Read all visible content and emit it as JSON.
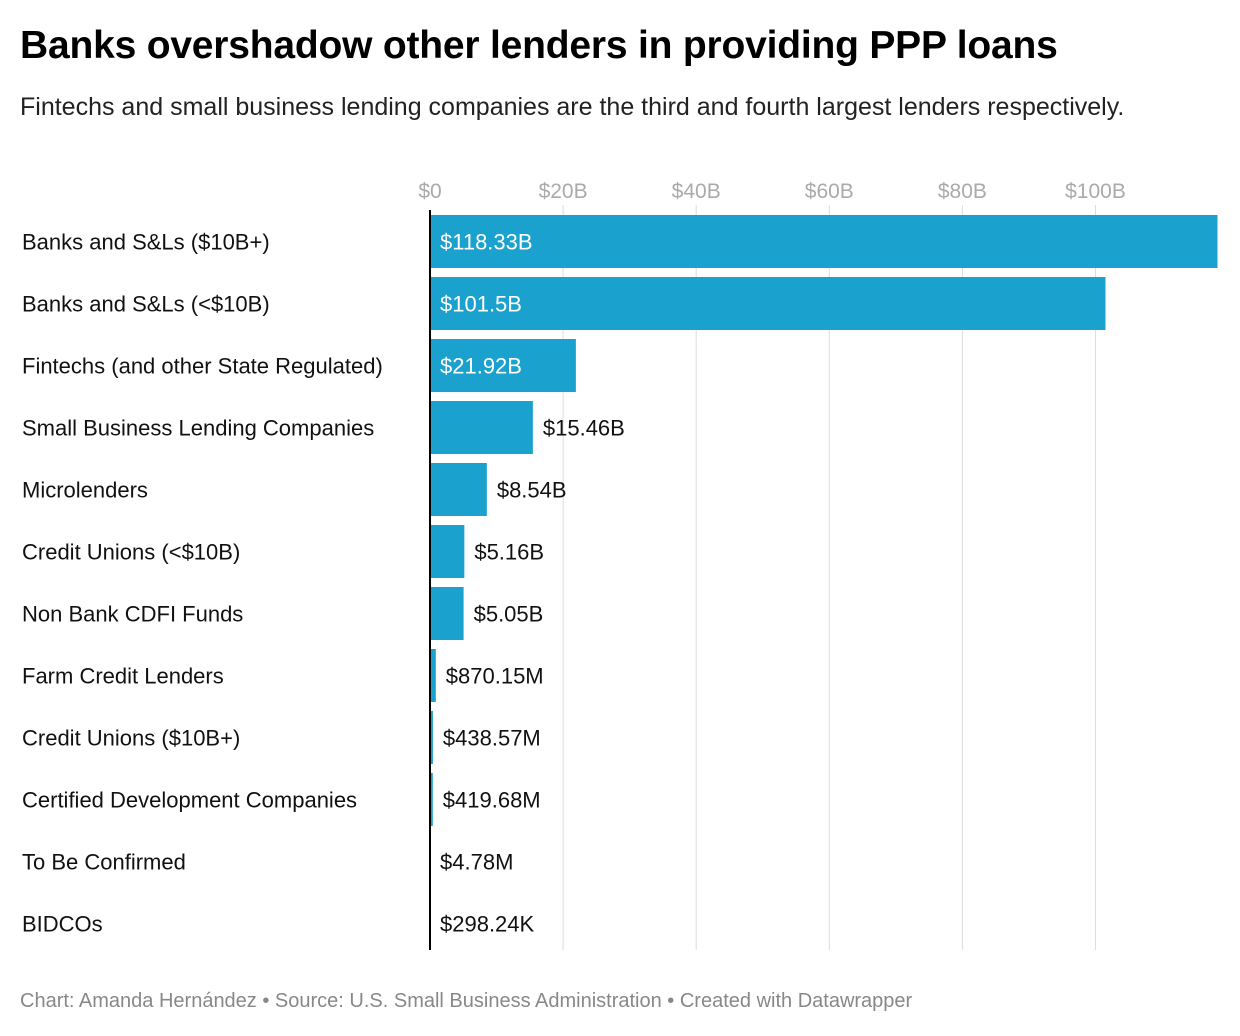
{
  "header": {
    "title": "Banks overshadow other lenders in providing PPP loans",
    "subtitle": "Fintechs and small business lending companies are the third and fourth largest lenders respectively."
  },
  "footer": {
    "credit": "Chart: Amanda Hernández • Source: U.S. Small Business Administration • Created with Datawrapper"
  },
  "colors": {
    "bar": "#1aa1ce",
    "grid": "#dddddd",
    "tick_text": "#aaaaaa",
    "axis": "#000000"
  },
  "chart_data": {
    "type": "bar",
    "orientation": "horizontal",
    "categories": [
      "Banks and S&Ls ($10B+)",
      "Banks and S&Ls (<$10B)",
      "Fintechs (and other State Regulated)",
      "Small Business Lending Companies",
      "Microlenders",
      "Credit Unions (<$10B)",
      "Non Bank CDFI Funds",
      "Farm Credit Lenders",
      "Credit Unions ($10B+)",
      "Certified Development Companies",
      "To Be Confirmed",
      "BIDCOs"
    ],
    "values": [
      118.33,
      101.5,
      21.92,
      15.46,
      8.54,
      5.16,
      5.05,
      0.87015,
      0.43857,
      0.41968,
      0.00478,
      0.00029824
    ],
    "value_labels": [
      "$118.33B",
      "$101.5B",
      "$21.92B",
      "$15.46B",
      "$8.54B",
      "$5.16B",
      "$5.05B",
      "$870.15M",
      "$438.57M",
      "$419.68M",
      "$4.78M",
      "$298.24K"
    ],
    "value_unit": "billions of dollars",
    "x_ticks": [
      0,
      20,
      40,
      60,
      80,
      100
    ],
    "x_tick_labels": [
      "$0",
      "$20B",
      "$40B",
      "$60B",
      "$80B",
      "$100B"
    ],
    "xlim": [
      0,
      118.33
    ],
    "grid": true,
    "axis_position": "top"
  }
}
